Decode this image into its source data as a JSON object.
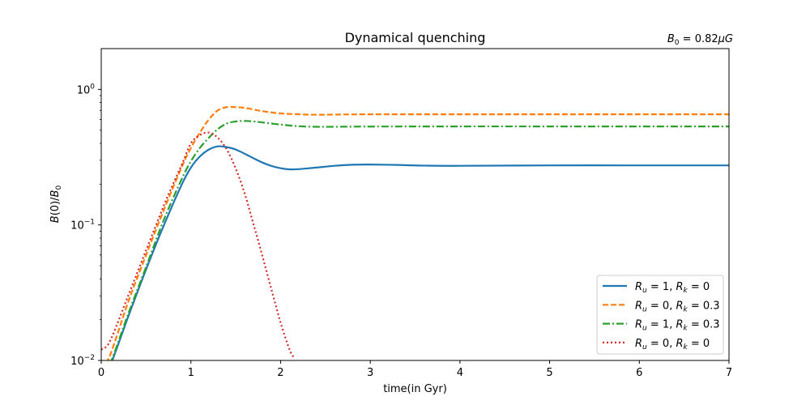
{
  "chart_data": {
    "type": "line",
    "title": "Dynamical quenching",
    "annotation": {
      "base": "B",
      "sub": "0",
      "rest": " = 0.82",
      "mu": "μ",
      "unit": "G"
    },
    "xlabel": "time(in Gyr)",
    "ylabel": {
      "lhs": "B",
      "mid": "(0)/",
      "base": "B",
      "sub": "0"
    },
    "xlim": [
      0,
      7
    ],
    "ylim": [
      0.01,
      2.0
    ],
    "yscale": "log",
    "xticks": [
      0,
      1,
      2,
      3,
      4,
      5,
      6,
      7
    ],
    "xtick_labels": [
      "0",
      "1",
      "2",
      "3",
      "4",
      "5",
      "6",
      "7"
    ],
    "yticks": [
      0.01,
      0.1,
      1.0
    ],
    "ytick_labels": [
      {
        "base": "10",
        "exp": "−2"
      },
      {
        "base": "10",
        "exp": "−1"
      },
      {
        "base": "10",
        "exp": "0"
      }
    ],
    "legend_position": "lower-right",
    "grid": false,
    "series": [
      {
        "name": {
          "R": "R",
          "u": "u",
          "eq1": " = 1, ",
          "R2": "R",
          "k": "k",
          "eq2": " = 0"
        },
        "color": "#1f77b4",
        "dash": "solid",
        "x": [
          0.0,
          0.1,
          0.3,
          0.5,
          0.7,
          0.9,
          1.0,
          1.1,
          1.2,
          1.3,
          1.4,
          1.5,
          1.6,
          1.7,
          1.8,
          1.9,
          2.0,
          2.1,
          2.2,
          2.4,
          2.6,
          2.8,
          3.0,
          3.3,
          3.6,
          4.0,
          5.0,
          6.0,
          7.0
        ],
        "y": [
          0.0075,
          0.0092,
          0.021,
          0.047,
          0.1,
          0.2,
          0.265,
          0.32,
          0.36,
          0.38,
          0.375,
          0.36,
          0.335,
          0.31,
          0.288,
          0.272,
          0.262,
          0.257,
          0.258,
          0.265,
          0.273,
          0.278,
          0.279,
          0.277,
          0.274,
          0.273,
          0.275,
          0.275,
          0.275
        ]
      },
      {
        "name": {
          "R": "R",
          "u": "u",
          "eq1": " = 0, ",
          "R2": "R",
          "k": "k",
          "eq2": " = 0.3"
        },
        "color": "#ff7f0e",
        "dash": "dashed",
        "x": [
          0.0,
          0.1,
          0.3,
          0.5,
          0.7,
          0.9,
          1.0,
          1.1,
          1.2,
          1.3,
          1.4,
          1.5,
          1.6,
          1.7,
          1.8,
          2.0,
          2.2,
          2.4,
          2.6,
          3.0,
          4.0,
          5.0,
          6.0,
          7.0
        ],
        "y": [
          0.0085,
          0.011,
          0.027,
          0.06,
          0.13,
          0.27,
          0.37,
          0.48,
          0.6,
          0.7,
          0.74,
          0.74,
          0.73,
          0.71,
          0.69,
          0.665,
          0.655,
          0.65,
          0.652,
          0.655,
          0.655,
          0.655,
          0.655,
          0.655
        ]
      },
      {
        "name": {
          "R": "R",
          "u": "u",
          "eq1": " = 1, ",
          "R2": "R",
          "k": "k",
          "eq2": " = 0.3"
        },
        "color": "#2ca02c",
        "dash": "dashdot",
        "x": [
          0.0,
          0.1,
          0.3,
          0.5,
          0.7,
          0.9,
          1.0,
          1.1,
          1.2,
          1.3,
          1.4,
          1.5,
          1.6,
          1.7,
          1.8,
          2.0,
          2.2,
          2.4,
          2.6,
          3.0,
          4.0,
          5.0,
          6.0,
          7.0
        ],
        "y": [
          0.0078,
          0.0095,
          0.022,
          0.049,
          0.11,
          0.22,
          0.295,
          0.37,
          0.44,
          0.51,
          0.56,
          0.58,
          0.585,
          0.58,
          0.57,
          0.55,
          0.535,
          0.53,
          0.53,
          0.532,
          0.533,
          0.533,
          0.533,
          0.533
        ]
      },
      {
        "name": {
          "R": "R",
          "u": "u",
          "eq1": " = 0, ",
          "R2": "R",
          "k": "k",
          "eq2": " = 0"
        },
        "color": "#d62728",
        "dash": "dotted",
        "x": [
          0.0,
          0.1,
          0.3,
          0.5,
          0.7,
          0.8,
          0.9,
          1.0,
          1.1,
          1.2,
          1.3,
          1.4,
          1.5,
          1.6,
          1.7,
          1.8,
          1.9,
          2.0,
          2.1,
          2.15
        ],
        "y": [
          0.012,
          0.014,
          0.03,
          0.065,
          0.14,
          0.2,
          0.28,
          0.4,
          0.46,
          0.48,
          0.44,
          0.36,
          0.26,
          0.17,
          0.1,
          0.058,
          0.033,
          0.019,
          0.012,
          0.0105
        ]
      }
    ]
  }
}
